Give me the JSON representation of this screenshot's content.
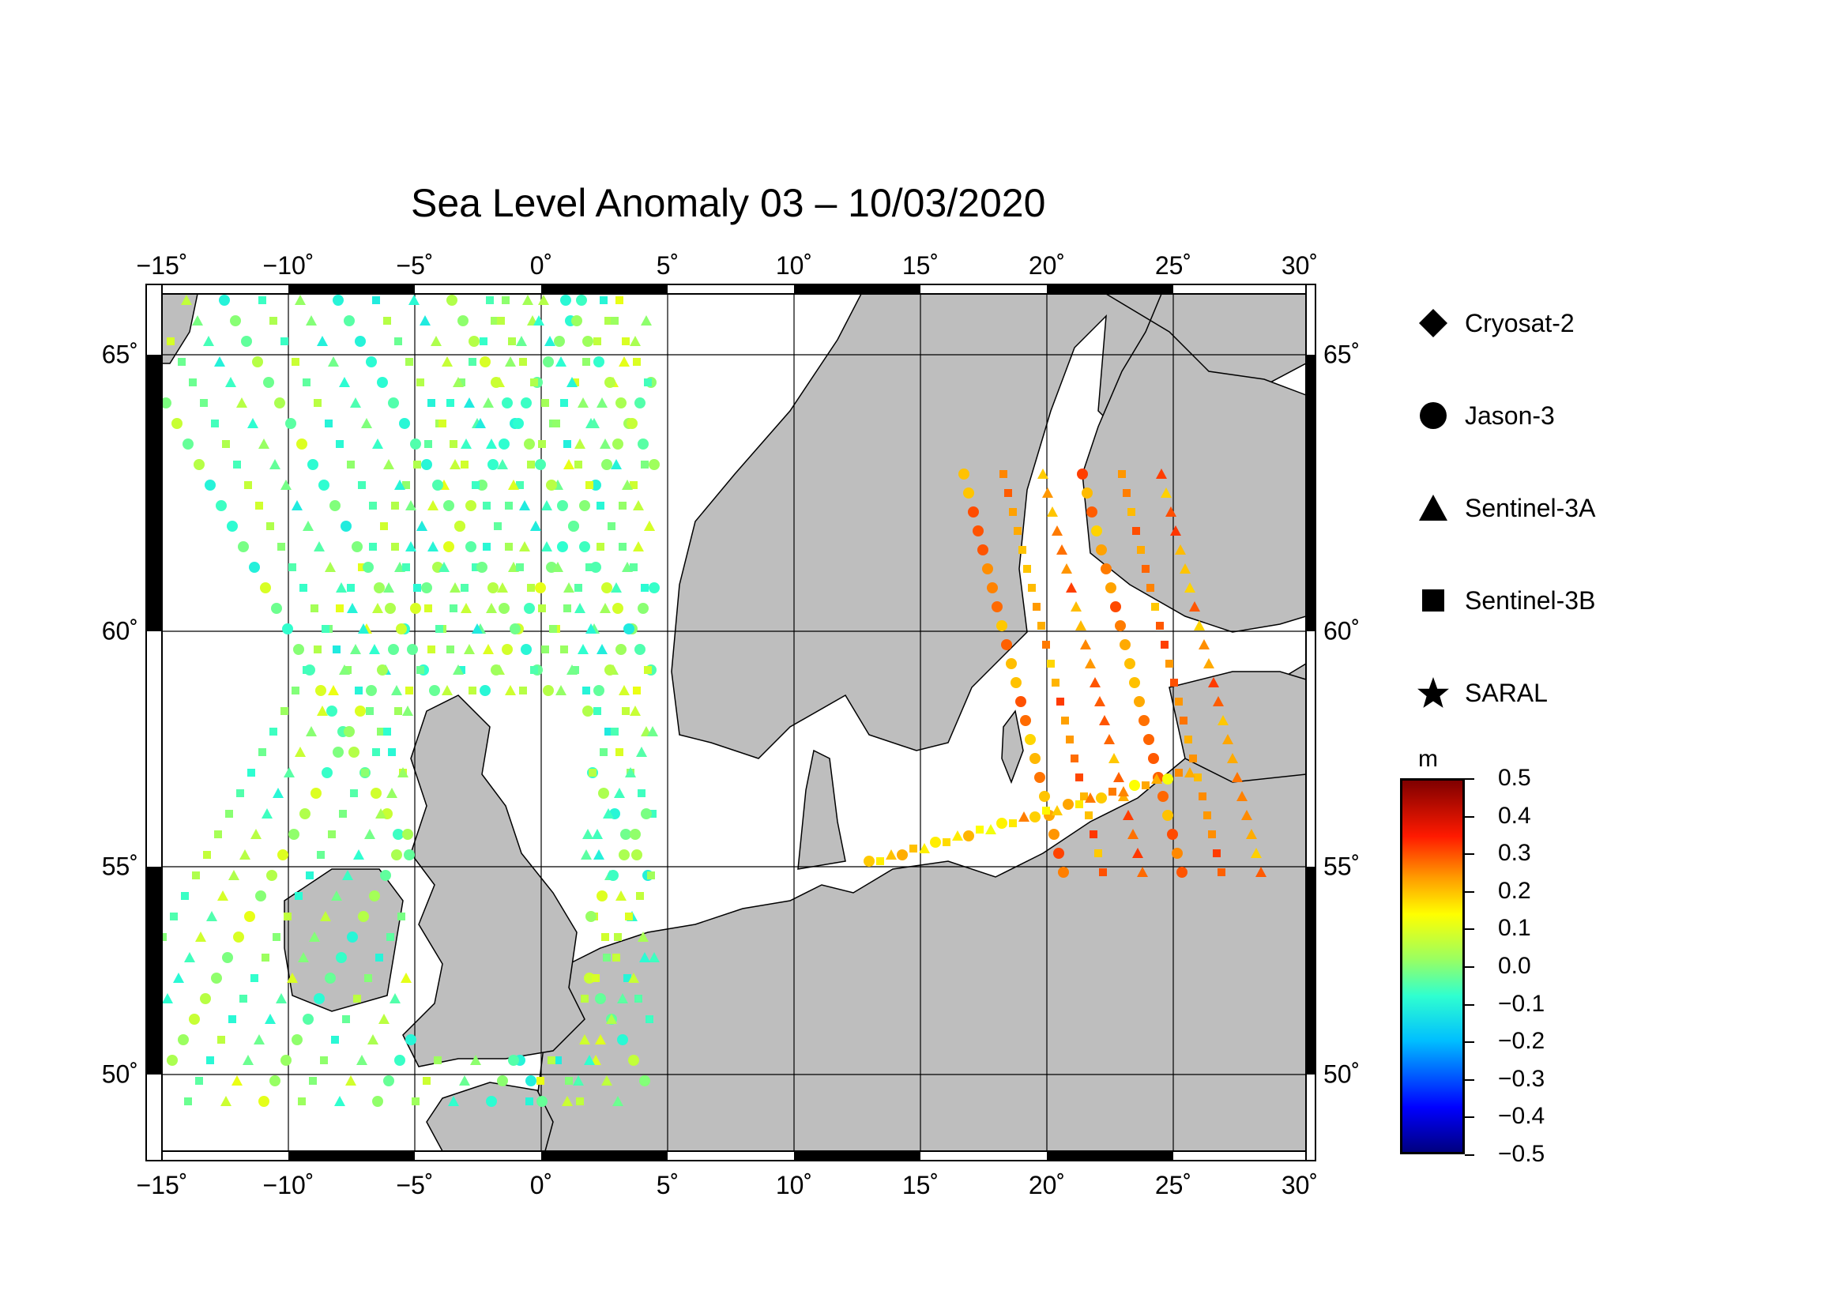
{
  "title": "Sea Level Anomaly 03 – 10/03/2020",
  "map": {
    "lon_range": [
      -15,
      30
    ],
    "lat_range": [
      48.5,
      66
    ],
    "lon_ticks": [
      "−15˚",
      "−10˚",
      "−5˚",
      "0˚",
      "5˚",
      "10˚",
      "15˚",
      "20˚",
      "25˚",
      "30˚"
    ],
    "lat_ticks": [
      "65˚",
      "60˚",
      "55˚",
      "50˚"
    ],
    "land_color": "#bebebe",
    "sea_color": "#ffffff"
  },
  "legend": {
    "items": [
      {
        "label": "Cryosat-2",
        "symbol": "diamond-icon"
      },
      {
        "label": "Jason-3",
        "symbol": "circle-icon"
      },
      {
        "label": "Sentinel-3A",
        "symbol": "triangle-icon"
      },
      {
        "label": "Sentinel-3B",
        "symbol": "square-icon"
      },
      {
        "label": "SARAL",
        "symbol": "star-icon"
      }
    ]
  },
  "colorbar": {
    "unit": "m",
    "ticks": [
      "0.5",
      "0.4",
      "0.3",
      "0.2",
      "0.1",
      "0.0",
      "−0.1",
      "−0.2",
      "−0.3",
      "−0.4",
      "−0.5"
    ],
    "range": [
      -0.5,
      0.5
    ]
  }
}
